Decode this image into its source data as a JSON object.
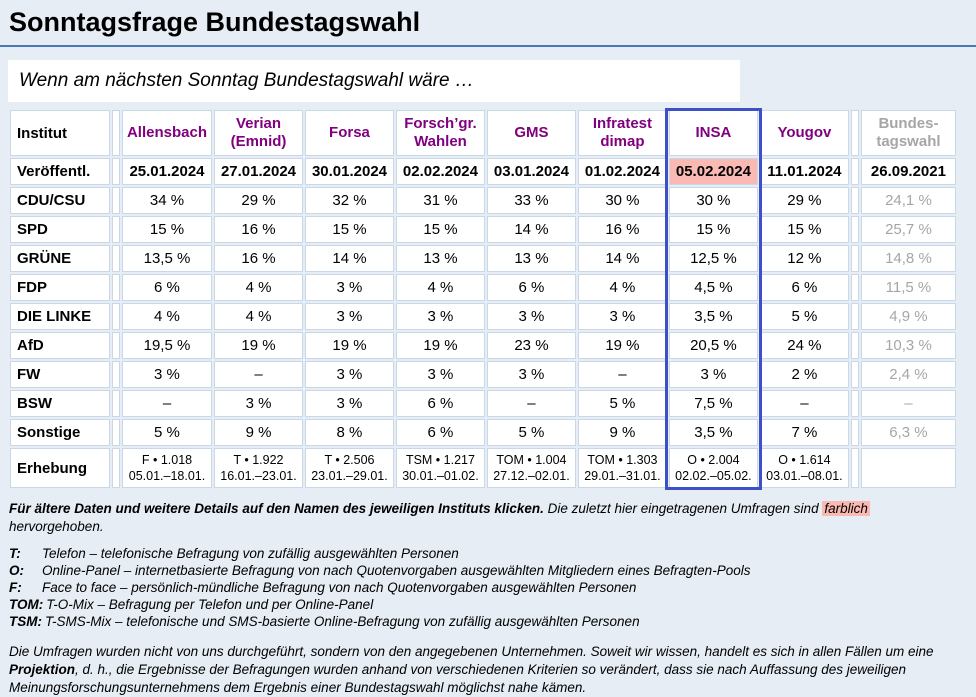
{
  "page": {
    "title": "Sonntagsfrage Bundestagswahl",
    "subtitle": "Wenn am nächsten Sonntag Bundestagswahl wäre …"
  },
  "colors": {
    "page_background": "#E6EDF5",
    "rule_blue": "#4879AF",
    "institute_purple": "#800080",
    "highlight_pink": "#FBB9B4",
    "insa_border_blue": "#3D50C8",
    "inactive_gray": "#A6A6A6"
  },
  "table": {
    "institut_label": "Institut",
    "veroeffentl_label": "Veröffentl.",
    "erhebung_label": "Erhebung",
    "columns": [
      {
        "name": "Allensbach",
        "date": "25.01.2024",
        "survey": "F • 1.018",
        "period": "05.01.–18.01."
      },
      {
        "name": "Verian (Emnid)",
        "date": "27.01.2024",
        "survey": "T • 1.922",
        "period": "16.01.–23.01."
      },
      {
        "name": "Forsa",
        "date": "30.01.2024",
        "survey": "T • 2.506",
        "period": "23.01.–29.01."
      },
      {
        "name": "Forsch’gr. Wahlen",
        "date": "02.02.2024",
        "survey": "TSM • 1.217",
        "period": "30.01.–01.02."
      },
      {
        "name": "GMS",
        "date": "03.01.2024",
        "survey": "TOM • 1.004",
        "period": "27.12.–02.01."
      },
      {
        "name": "Infratest dimap",
        "date": "01.02.2024",
        "survey": "TOM • 1.303",
        "period": "29.01.–31.01."
      },
      {
        "name": "INSA",
        "date": "05.02.2024",
        "survey": "O • 2.004",
        "period": "02.02.–05.02.",
        "highlighted": true
      },
      {
        "name": "Yougov",
        "date": "11.01.2024",
        "survey": "O • 1.614",
        "period": "03.01.–08.01."
      },
      {
        "name": "Bundes-tagswahl",
        "date": "26.09.2021",
        "survey": "",
        "period": ""
      }
    ],
    "rows": [
      {
        "label": "CDU/CSU",
        "values": [
          "34 %",
          "29 %",
          "32 %",
          "31 %",
          "33 %",
          "30 %",
          "30 %",
          "29 %",
          "24,1 %"
        ]
      },
      {
        "label": "SPD",
        "values": [
          "15 %",
          "16 %",
          "15 %",
          "15 %",
          "14 %",
          "16 %",
          "15 %",
          "15 %",
          "25,7 %"
        ]
      },
      {
        "label": "GRÜNE",
        "values": [
          "13,5 %",
          "16 %",
          "14 %",
          "13 %",
          "13 %",
          "14 %",
          "12,5 %",
          "12 %",
          "14,8 %"
        ]
      },
      {
        "label": "FDP",
        "values": [
          "6 %",
          "4 %",
          "3 %",
          "4 %",
          "6 %",
          "4 %",
          "4,5 %",
          "6 %",
          "11,5 %"
        ]
      },
      {
        "label": "DIE LINKE",
        "values": [
          "4 %",
          "4 %",
          "3 %",
          "3 %",
          "3 %",
          "3 %",
          "3,5 %",
          "5 %",
          "4,9 %"
        ]
      },
      {
        "label": "AfD",
        "values": [
          "19,5 %",
          "19 %",
          "19 %",
          "19 %",
          "23 %",
          "19 %",
          "20,5 %",
          "24 %",
          "10,3 %"
        ]
      },
      {
        "label": "FW",
        "values": [
          "3 %",
          "–",
          "3 %",
          "3 %",
          "3 %",
          "–",
          "3 %",
          "2 %",
          "2,4 %"
        ]
      },
      {
        "label": "BSW",
        "values": [
          "–",
          "3 %",
          "3 %",
          "6 %",
          "–",
          "5 %",
          "7,5 %",
          "–",
          "–"
        ]
      },
      {
        "label": "Sonstige",
        "values": [
          "5 %",
          "9 %",
          "8 %",
          "6 %",
          "5 %",
          "9 %",
          "3,5 %",
          "7 %",
          "6,3 %"
        ]
      }
    ]
  },
  "footer": {
    "note_bold": "Für ältere Daten und weitere Details auf den Namen des jeweiligen Instituts klicken.",
    "note_before": "Die zuletzt hier eingetragenen Umfragen sind",
    "note_highlight": "farblich",
    "note_after": "hervorgehoben."
  },
  "legend": [
    {
      "abbr": "T:",
      "text": "Telefon – telefonische Befragung von zufällig ausgewählten Personen"
    },
    {
      "abbr": "O:",
      "text": "Online-Panel – internetbasierte Befragung von nach Quotenvorgaben ausgewählten Mitgliedern eines Befragten-Pools"
    },
    {
      "abbr": "F:",
      "text": "Face to face – persönlich-mündliche Befragung von nach Quotenvorgaben ausgewählten Personen"
    },
    {
      "abbr": "TOM:",
      "text": "T-O-Mix – Befragung per Telefon und per Online-Panel"
    },
    {
      "abbr": "TSM:",
      "text": "T-SMS-Mix – telefonische und SMS-basierte Online-Befragung von zufällig ausgewählten Personen"
    }
  ],
  "disclaimer": {
    "part1": "Die Umfragen wurden nicht von uns durchgeführt, sondern von den angegebenen Unternehmen. Soweit wir wissen, handelt es sich in allen Fällen um eine",
    "bold": "Projektion",
    "part2": ", d. h., die Ergebnisse der Befragungen wurden anhand von verschiedenen Kriterien so verändert, dass sie nach Auffassung des jeweiligen Meinungsforschungsunternehmens dem Ergebnis einer Bundestagswahl möglichst nahe kämen."
  }
}
